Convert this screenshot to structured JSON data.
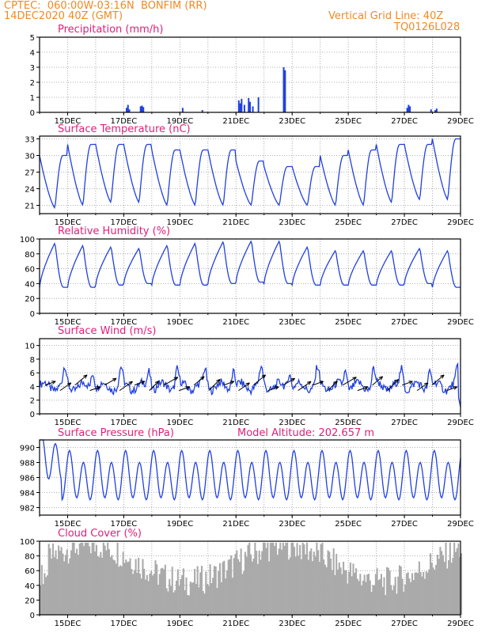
{
  "header": {
    "line1_left": "CPTEC:  060:00W-03:16N  BONFIM (RR)",
    "line2_left": "14DEC2020 40Z (GMT)",
    "line1_right": "Vertical Grid Line: 40Z",
    "line2_right": "TQ0126L028"
  },
  "colors": {
    "header": "#f08a24",
    "panel_title": "#e0207a",
    "line": "#2040e0",
    "cloud": "#aaaaaa"
  },
  "x_tick_labels": [
    "15DEC",
    "17DEC",
    "19DEC",
    "21DEC",
    "23DEC",
    "25DEC",
    "27DEC",
    "29DEC"
  ],
  "chart_data": [
    {
      "id": "precip",
      "type": "bar",
      "title": "Precipitation (mm/h)",
      "ylim": [
        0,
        5
      ],
      "yticks": [
        0,
        1,
        2,
        3,
        4,
        5
      ],
      "grid": true,
      "x": [
        3.1,
        3.15,
        3.2,
        3.6,
        3.65,
        3.7,
        5.1,
        5.8,
        7.1,
        7.15,
        7.2,
        7.3,
        7.45,
        7.5,
        7.6,
        7.8,
        8.7,
        8.75,
        13.1,
        13.15,
        13.2,
        13.95,
        14.1,
        14.15
      ],
      "values": [
        0.3,
        0.5,
        0.2,
        0.4,
        0.45,
        0.35,
        0.3,
        0.15,
        0.8,
        0.6,
        0.9,
        0.5,
        0.95,
        0.7,
        0.4,
        1.0,
        3.0,
        2.8,
        0.3,
        0.5,
        0.4,
        0.2,
        0.15,
        0.25
      ]
    },
    {
      "id": "temp",
      "type": "line",
      "title": "Surface Temperature (nC)",
      "ylim": [
        19.5,
        33.5
      ],
      "yticks": [
        21,
        24,
        27,
        30,
        33
      ],
      "grid": true
    },
    {
      "id": "rh",
      "type": "line",
      "title": "Relative Humidity (%)",
      "ylim": [
        0,
        100
      ],
      "yticks": [
        0,
        20,
        40,
        60,
        80,
        100
      ],
      "grid": true
    },
    {
      "id": "wind",
      "type": "line",
      "title": "Surface Wind (m/s)",
      "ylim": [
        0,
        11
      ],
      "yticks": [
        0,
        2,
        4,
        6,
        8,
        10
      ],
      "grid": true
    },
    {
      "id": "press",
      "type": "line",
      "title": "Surface Pressure (hPa)",
      "annotation": "Model Altitude: 202.657 m",
      "ylim": [
        981,
        991
      ],
      "yticks": [
        982,
        984,
        986,
        988,
        990
      ],
      "grid": true
    },
    {
      "id": "cloud",
      "type": "bar",
      "title": "Cloud Cover (%)",
      "ylim": [
        0,
        100
      ],
      "yticks": [
        0,
        20,
        40,
        60,
        80,
        100
      ],
      "grid": true
    }
  ]
}
